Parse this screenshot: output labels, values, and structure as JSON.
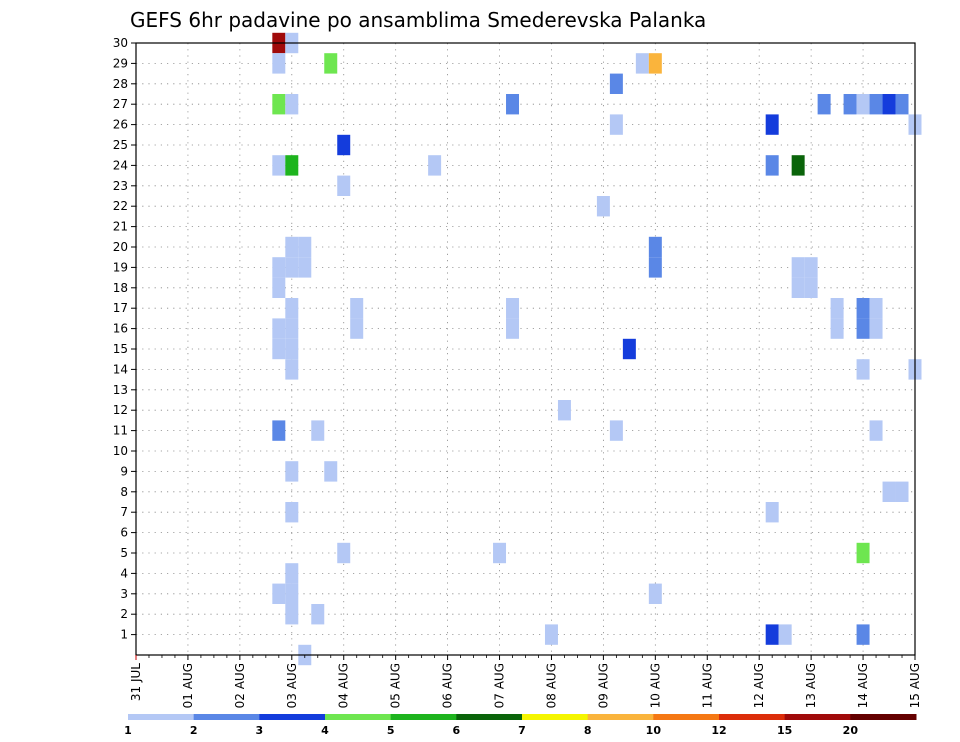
{
  "chart_data": {
    "type": "heatmap",
    "title": "GEFS 6hr padavine po ansamblima Smederevska Palanka",
    "xlabel": "",
    "ylabel": "",
    "x_ticks": [
      "31 JUL",
      "01 AUG",
      "02 AUG",
      "03 AUG",
      "04 AUG",
      "05 AUG",
      "06 AUG",
      "07 AUG",
      "08 AUG",
      "09 AUG",
      "10 AUG",
      "11 AUG",
      "12 AUG",
      "13 AUG",
      "14 AUG",
      "15 AUG"
    ],
    "xlim_days": [
      0,
      15
    ],
    "y_ticks": [
      1,
      2,
      3,
      4,
      5,
      6,
      7,
      8,
      9,
      10,
      11,
      12,
      13,
      14,
      15,
      16,
      17,
      18,
      19,
      20,
      21,
      22,
      23,
      24,
      25,
      26,
      27,
      28,
      29,
      30
    ],
    "ylim": [
      0,
      30
    ],
    "grid": true,
    "colorbar": {
      "labels": [
        "1",
        "2",
        "3",
        "4",
        "5",
        "6",
        "7",
        "8",
        "10",
        "12",
        "15",
        "20"
      ],
      "colors": [
        "#b4c8f5",
        "#5a87e6",
        "#143cdc",
        "#6ee650",
        "#1eb41e",
        "#0a640a",
        "#f5f500",
        "#fab43c",
        "#f57814",
        "#dc2d0a",
        "#a00a0a",
        "#640000"
      ]
    },
    "cells": [
      {
        "member": 30,
        "day": 2.75,
        "color": "#a00a0a"
      },
      {
        "member": 30,
        "day": 3.0,
        "color": "#b4c8f5"
      },
      {
        "member": 29,
        "day": 2.75,
        "color": "#b4c8f5"
      },
      {
        "member": 29,
        "day": 3.75,
        "color": "#6ee650"
      },
      {
        "member": 29,
        "day": 9.75,
        "color": "#b4c8f5"
      },
      {
        "member": 29,
        "day": 10.0,
        "color": "#fab43c"
      },
      {
        "member": 28,
        "day": 9.25,
        "color": "#5a87e6"
      },
      {
        "member": 27,
        "day": 2.75,
        "color": "#6ee650"
      },
      {
        "member": 27,
        "day": 3.0,
        "color": "#b4c8f5"
      },
      {
        "member": 27,
        "day": 7.25,
        "color": "#5a87e6"
      },
      {
        "member": 27,
        "day": 13.25,
        "color": "#5a87e6"
      },
      {
        "member": 27,
        "day": 13.75,
        "color": "#5a87e6"
      },
      {
        "member": 27,
        "day": 14.0,
        "color": "#b4c8f5"
      },
      {
        "member": 27,
        "day": 14.25,
        "color": "#5a87e6"
      },
      {
        "member": 27,
        "day": 14.5,
        "color": "#143cdc"
      },
      {
        "member": 27,
        "day": 14.75,
        "color": "#5a87e6"
      },
      {
        "member": 26,
        "day": 9.25,
        "color": "#b4c8f5"
      },
      {
        "member": 26,
        "day": 12.25,
        "color": "#143cdc"
      },
      {
        "member": 26,
        "day": 15.0,
        "color": "#b4c8f5"
      },
      {
        "member": 25,
        "day": 4.0,
        "color": "#143cdc"
      },
      {
        "member": 24,
        "day": 2.75,
        "color": "#b4c8f5"
      },
      {
        "member": 24,
        "day": 3.0,
        "color": "#1eb41e"
      },
      {
        "member": 24,
        "day": 5.75,
        "color": "#b4c8f5"
      },
      {
        "member": 24,
        "day": 12.25,
        "color": "#5a87e6"
      },
      {
        "member": 24,
        "day": 12.75,
        "color": "#0a640a"
      },
      {
        "member": 23,
        "day": 4.0,
        "color": "#b4c8f5"
      },
      {
        "member": 22,
        "day": 9.0,
        "color": "#b4c8f5"
      },
      {
        "member": 20,
        "day": 3.0,
        "color": "#b4c8f5"
      },
      {
        "member": 20,
        "day": 3.25,
        "color": "#b4c8f5"
      },
      {
        "member": 20,
        "day": 10.0,
        "color": "#5a87e6"
      },
      {
        "member": 19,
        "day": 2.75,
        "color": "#b4c8f5"
      },
      {
        "member": 19,
        "day": 10.0,
        "color": "#5a87e6"
      },
      {
        "member": 19,
        "day": 3.0,
        "color": "#b4c8f5"
      },
      {
        "member": 19,
        "day": 3.25,
        "color": "#b4c8f5"
      },
      {
        "member": 18,
        "day": 2.75,
        "color": "#b4c8f5"
      },
      {
        "member": 18,
        "day": 12.75,
        "color": "#b4c8f5"
      },
      {
        "member": 18,
        "day": 13.0,
        "color": "#b4c8f5"
      },
      {
        "member": 19,
        "day": 12.75,
        "color": "#b4c8f5"
      },
      {
        "member": 19,
        "day": 13.0,
        "color": "#b4c8f5"
      },
      {
        "member": 17,
        "day": 3.0,
        "color": "#b4c8f5"
      },
      {
        "member": 17,
        "day": 4.25,
        "color": "#b4c8f5"
      },
      {
        "member": 17,
        "day": 7.25,
        "color": "#b4c8f5"
      },
      {
        "member": 17,
        "day": 13.5,
        "color": "#b4c8f5"
      },
      {
        "member": 17,
        "day": 14.0,
        "color": "#5a87e6"
      },
      {
        "member": 17,
        "day": 14.25,
        "color": "#b4c8f5"
      },
      {
        "member": 16,
        "day": 2.75,
        "color": "#b4c8f5"
      },
      {
        "member": 16,
        "day": 3.0,
        "color": "#b4c8f5"
      },
      {
        "member": 16,
        "day": 4.25,
        "color": "#b4c8f5"
      },
      {
        "member": 16,
        "day": 7.25,
        "color": "#b4c8f5"
      },
      {
        "member": 16,
        "day": 13.5,
        "color": "#b4c8f5"
      },
      {
        "member": 16,
        "day": 14.0,
        "color": "#5a87e6"
      },
      {
        "member": 16,
        "day": 14.25,
        "color": "#b4c8f5"
      },
      {
        "member": 15,
        "day": 2.75,
        "color": "#b4c8f5"
      },
      {
        "member": 15,
        "day": 3.0,
        "color": "#b4c8f5"
      },
      {
        "member": 15,
        "day": 9.5,
        "color": "#143cdc"
      },
      {
        "member": 14,
        "day": 3.0,
        "color": "#b4c8f5"
      },
      {
        "member": 14,
        "day": 14.0,
        "color": "#b4c8f5"
      },
      {
        "member": 14,
        "day": 15.0,
        "color": "#b4c8f5"
      },
      {
        "member": 12,
        "day": 8.25,
        "color": "#b4c8f5"
      },
      {
        "member": 11,
        "day": 2.75,
        "color": "#5a87e6"
      },
      {
        "member": 11,
        "day": 3.5,
        "color": "#b4c8f5"
      },
      {
        "member": 11,
        "day": 9.25,
        "color": "#b4c8f5"
      },
      {
        "member": 11,
        "day": 14.25,
        "color": "#b4c8f5"
      },
      {
        "member": 9,
        "day": 3.0,
        "color": "#b4c8f5"
      },
      {
        "member": 9,
        "day": 3.75,
        "color": "#b4c8f5"
      },
      {
        "member": 8,
        "day": 14.5,
        "color": "#b4c8f5"
      },
      {
        "member": 8,
        "day": 14.75,
        "color": "#b4c8f5"
      },
      {
        "member": 7,
        "day": 3.0,
        "color": "#b4c8f5"
      },
      {
        "member": 7,
        "day": 12.25,
        "color": "#b4c8f5"
      },
      {
        "member": 5,
        "day": 4.0,
        "color": "#b4c8f5"
      },
      {
        "member": 5,
        "day": 7.0,
        "color": "#b4c8f5"
      },
      {
        "member": 5,
        "day": 14.0,
        "color": "#6ee650"
      },
      {
        "member": 4,
        "day": 3.0,
        "color": "#b4c8f5"
      },
      {
        "member": 3,
        "day": 2.75,
        "color": "#b4c8f5"
      },
      {
        "member": 3,
        "day": 3.0,
        "color": "#b4c8f5"
      },
      {
        "member": 3,
        "day": 10.0,
        "color": "#b4c8f5"
      },
      {
        "member": 2,
        "day": 3.0,
        "color": "#b4c8f5"
      },
      {
        "member": 2,
        "day": 3.5,
        "color": "#b4c8f5"
      },
      {
        "member": 1,
        "day": 8.0,
        "color": "#b4c8f5"
      },
      {
        "member": 1,
        "day": 12.25,
        "color": "#143cdc"
      },
      {
        "member": 1,
        "day": 12.5,
        "color": "#b4c8f5"
      },
      {
        "member": 1,
        "day": 14.0,
        "color": "#5a87e6"
      },
      {
        "member": 0,
        "day": 3.25,
        "color": "#b4c8f5"
      }
    ]
  }
}
